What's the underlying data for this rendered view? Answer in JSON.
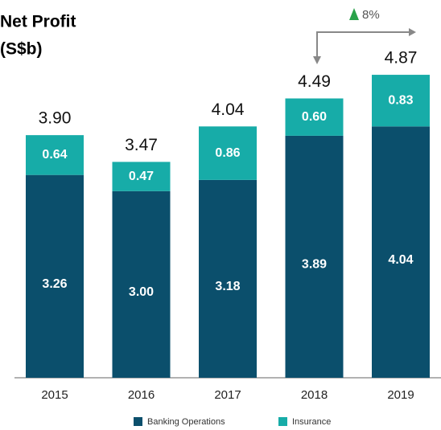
{
  "chart_data": {
    "type": "stacked_bar",
    "title": "Net Profit",
    "subtitle": "(S$b)",
    "categories": [
      "2015",
      "2016",
      "2017",
      "2018",
      "2019"
    ],
    "series": [
      {
        "name": "Banking Operations",
        "color": "#0b4f6c",
        "values": [
          3.26,
          3,
          3.18,
          3.89,
          4.04
        ],
        "value_labels": [
          "3.26",
          "3.00",
          "3.18",
          "3.89",
          "4.04"
        ]
      },
      {
        "name": "Insurance",
        "color": "#17aca8",
        "values": [
          0.64,
          0.47,
          0.86,
          0.6,
          0.83
        ],
        "value_labels": [
          "0.64",
          "0.47",
          "0.86",
          "0.60",
          "0.83"
        ]
      }
    ],
    "totals": [
      3.9,
      3.47,
      4.04,
      4.49,
      4.87
    ],
    "total_labels": [
      "3.90",
      "3.47",
      "4.04",
      "4.49",
      "4.87"
    ],
    "annotation": "8%",
    "ylim": [
      0,
      5
    ],
    "legend": "bottom"
  }
}
